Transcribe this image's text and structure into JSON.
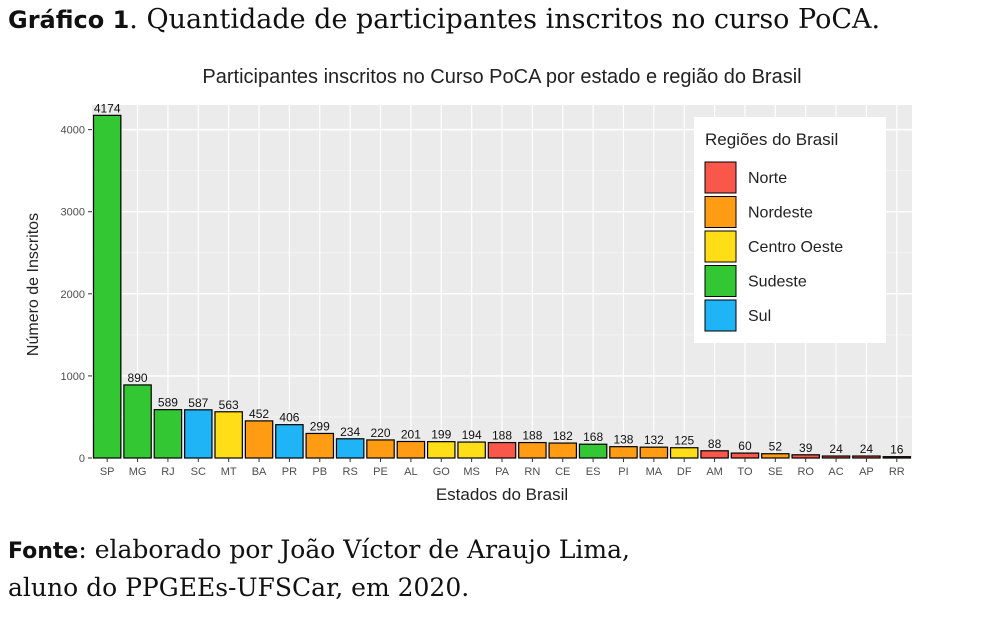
{
  "caption": {
    "lead": "Gráfico 1",
    "text": ". Quantidade de participantes inscritos no curso PoCA."
  },
  "source": {
    "lead": "Fonte",
    "line1": ": elaborado por João Víctor de Araujo Lima,",
    "line2": "aluno do PPGEEs-UFSCar, em 2020."
  },
  "chart_data": {
    "type": "bar",
    "title": "Participantes inscritos no Curso PoCA por estado e região do Brasil",
    "xlabel": "Estados do Brasil",
    "ylabel": "Número de Inscritos",
    "ylim": [
      0,
      4300
    ],
    "yticks": [
      0,
      1000,
      2000,
      3000,
      4000
    ],
    "grid": true,
    "legend_position": "top-right",
    "legend_title": "Regiões do Brasil",
    "regions": [
      {
        "name": "Norte",
        "color": "#f8574a"
      },
      {
        "name": "Nordeste",
        "color": "#ff9c14"
      },
      {
        "name": "Centro Oeste",
        "color": "#ffde17"
      },
      {
        "name": "Sudeste",
        "color": "#33c733"
      },
      {
        "name": "Sul",
        "color": "#1eb4f5"
      }
    ],
    "categories": [
      "SP",
      "MG",
      "RJ",
      "SC",
      "MT",
      "BA",
      "PR",
      "PB",
      "RS",
      "PE",
      "AL",
      "GO",
      "MS",
      "PA",
      "RN",
      "CE",
      "ES",
      "PI",
      "MA",
      "DF",
      "AM",
      "TO",
      "SE",
      "RO",
      "AC",
      "AP",
      "RR"
    ],
    "values": [
      4174,
      890,
      589,
      587,
      563,
      452,
      406,
      299,
      234,
      220,
      201,
      199,
      194,
      188,
      188,
      182,
      168,
      138,
      132,
      125,
      88,
      60,
      52,
      39,
      24,
      24,
      16
    ],
    "bar_regions": [
      "Sudeste",
      "Sudeste",
      "Sudeste",
      "Sul",
      "Centro Oeste",
      "Nordeste",
      "Sul",
      "Nordeste",
      "Sul",
      "Nordeste",
      "Nordeste",
      "Centro Oeste",
      "Centro Oeste",
      "Norte",
      "Nordeste",
      "Nordeste",
      "Sudeste",
      "Nordeste",
      "Nordeste",
      "Centro Oeste",
      "Norte",
      "Norte",
      "Nordeste",
      "Norte",
      "Norte",
      "Norte",
      "Norte"
    ]
  }
}
